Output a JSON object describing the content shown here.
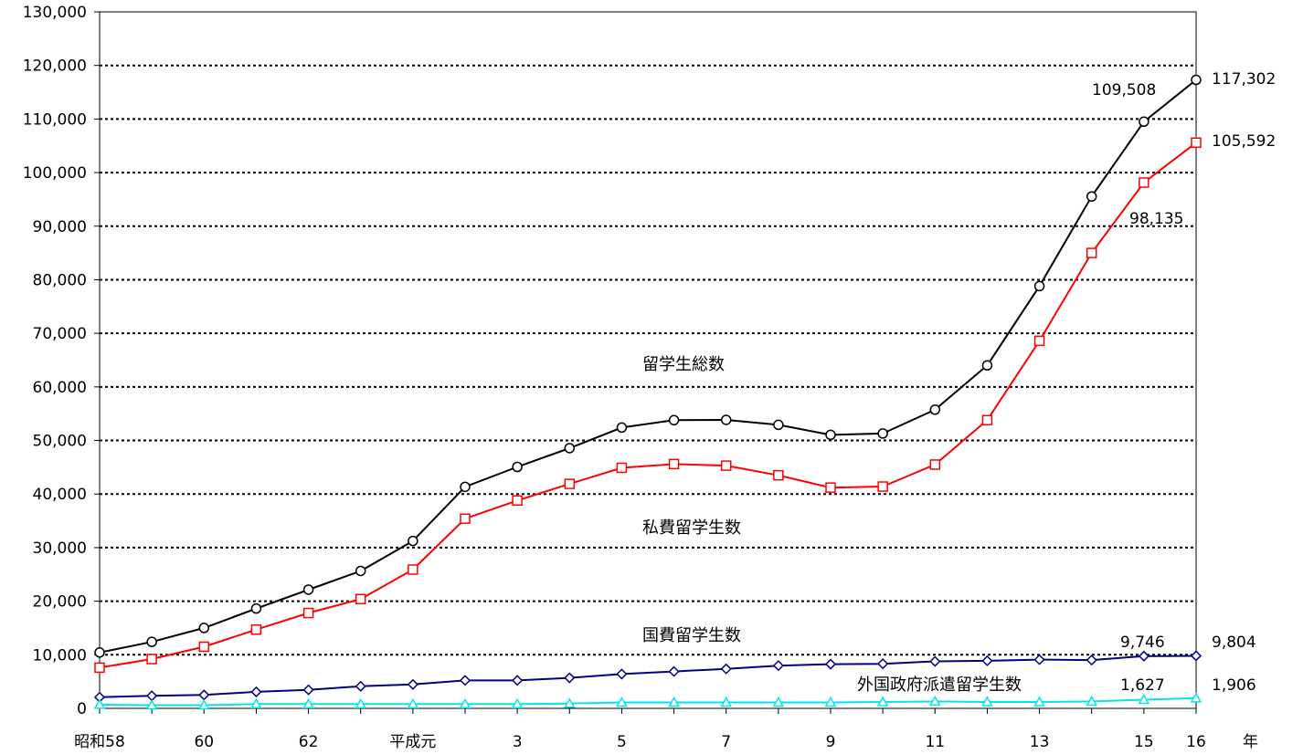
{
  "chart_data": {
    "type": "line",
    "categories": [
      "昭和58",
      "59",
      "60",
      "61",
      "62",
      "63",
      "平成元",
      "2",
      "3",
      "4",
      "5",
      "6",
      "7",
      "8",
      "9",
      "10",
      "11",
      "12",
      "13",
      "14",
      "15",
      "16"
    ],
    "x_tick_labels": [
      "昭和58",
      "",
      "60",
      "",
      "62",
      "",
      "平成元",
      "",
      "3",
      "",
      "5",
      "",
      "7",
      "",
      "9",
      "",
      "11",
      "",
      "13",
      "",
      "15",
      "16"
    ],
    "x_unit_label": "年",
    "ylim": [
      0,
      130000
    ],
    "y_ticks": [
      0,
      10000,
      20000,
      30000,
      40000,
      50000,
      60000,
      70000,
      80000,
      90000,
      100000,
      110000,
      120000,
      130000
    ],
    "y_tick_labels": [
      "0",
      "10,000",
      "20,000",
      "30,000",
      "40,000",
      "50,000",
      "60,000",
      "70,000",
      "80,000",
      "90,000",
      "100,000",
      "110,000",
      "120,000",
      "130,000"
    ],
    "grid": "horizontal dotted",
    "series": [
      {
        "name": "留学生総数",
        "color": "#000000",
        "marker": "circle",
        "values": [
          10428,
          12410,
          15009,
          18631,
          22154,
          25643,
          31251,
          41347,
          45066,
          48561,
          52405,
          53787,
          53847,
          52921,
          51047,
          51298,
          55755,
          64011,
          78812,
          95550,
          109508,
          117302
        ]
      },
      {
        "name": "私費留学生数",
        "color": "#ff0000",
        "marker": "square",
        "values": [
          7600,
          9200,
          11500,
          14700,
          17800,
          20400,
          25900,
          35400,
          38800,
          41900,
          44900,
          45600,
          45300,
          43500,
          41200,
          41400,
          45500,
          53800,
          68600,
          85000,
          98135,
          105592
        ]
      },
      {
        "name": "国費留学生数",
        "color": "#000080",
        "marker": "diamond",
        "values": [
          2082,
          2345,
          2502,
          3077,
          3459,
          4118,
          4465,
          5219,
          5219,
          5699,
          6408,
          6880,
          7371,
          7982,
          8250,
          8323,
          8773,
          8883,
          9097,
          9009,
          9746,
          9804
        ]
      },
      {
        "name": "外国政府派遣留学生数",
        "color": "#00e5ee",
        "marker": "triangle",
        "values": [
          700,
          600,
          600,
          800,
          800,
          800,
          800,
          800,
          800,
          900,
          1100,
          1100,
          1100,
          1100,
          1100,
          1200,
          1300,
          1200,
          1200,
          1300,
          1627,
          1906
        ]
      }
    ],
    "annotations": [
      {
        "text": "109,508",
        "series": 0,
        "index": 20
      },
      {
        "text": "117,302",
        "series": 0,
        "index": 21
      },
      {
        "text": "98,135",
        "series": 1,
        "index": 20
      },
      {
        "text": "105,592",
        "series": 1,
        "index": 21
      },
      {
        "text": "9,746",
        "series": 2,
        "index": 20
      },
      {
        "text": "9,804",
        "series": 2,
        "index": 21
      },
      {
        "text": "1,627",
        "series": 3,
        "index": 20
      },
      {
        "text": "1,906",
        "series": 3,
        "index": 21
      }
    ]
  }
}
